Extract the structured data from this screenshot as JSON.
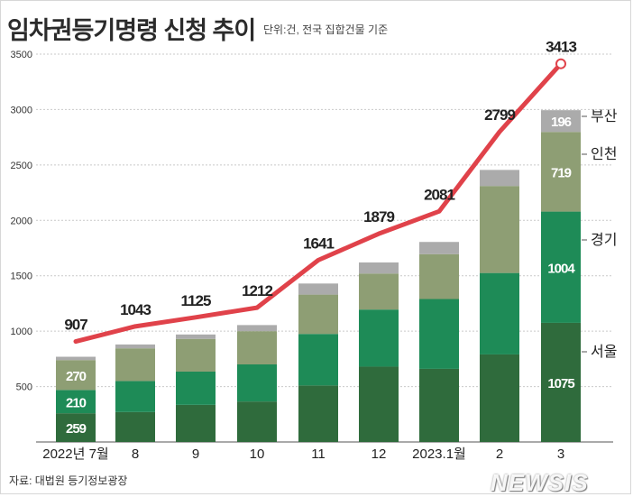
{
  "page": {
    "title": "임차권등기명령 신청 추이",
    "unit": "단위:건, 전국 집합건물 기준",
    "source": "자료: 대법원 등기정보광장",
    "watermark": "NEWSIS"
  },
  "chart_data": {
    "type": "bar",
    "stacked": true,
    "title": "임차권등기명령 신청 추이",
    "subtitle": "단위:건, 전국 집합건물 기준",
    "categories": [
      "2022년 7월",
      "8",
      "9",
      "10",
      "11",
      "12",
      "2023.1월",
      "2",
      "3"
    ],
    "ylim": [
      0,
      3500
    ],
    "yticks": [
      500,
      1000,
      1500,
      2000,
      2500,
      3000,
      3500
    ],
    "grid": true,
    "series": [
      {
        "name": "서울",
        "color": "#2f6b3c",
        "values": [
          259,
          270,
          335,
          365,
          510,
          680,
          660,
          790,
          1075
        ],
        "labels": [
          "259",
          "",
          "",
          "",
          "",
          "",
          "",
          "",
          "1075"
        ]
      },
      {
        "name": "경기",
        "color": "#1e8b57",
        "values": [
          210,
          280,
          300,
          335,
          465,
          515,
          630,
          735,
          1004
        ],
        "labels": [
          "210",
          "",
          "",
          "",
          "",
          "",
          "",
          "",
          "1004"
        ]
      },
      {
        "name": "인천",
        "color": "#8e9e74",
        "values": [
          270,
          295,
          295,
          300,
          355,
          325,
          405,
          785,
          719
        ],
        "labels": [
          "270",
          "",
          "",
          "",
          "",
          "",
          "",
          "",
          "719"
        ]
      },
      {
        "name": "부산",
        "color": "#ababab",
        "values": [
          30,
          35,
          40,
          55,
          100,
          100,
          110,
          145,
          196
        ],
        "labels": [
          "",
          "",
          "",
          "",
          "",
          "",
          "",
          "",
          "196"
        ]
      }
    ],
    "total_line": {
      "name": "전체",
      "color": "#e0424a",
      "values": [
        907,
        1043,
        1125,
        1212,
        1641,
        1879,
        2081,
        2799,
        3413
      ],
      "labels": [
        "907",
        "1043",
        "1125",
        "1212",
        "1641",
        "1879",
        "2081",
        "2799",
        "3413"
      ]
    },
    "legend_labels": [
      "부산",
      "인천",
      "경기",
      "서울"
    ],
    "legend_position": "right"
  }
}
